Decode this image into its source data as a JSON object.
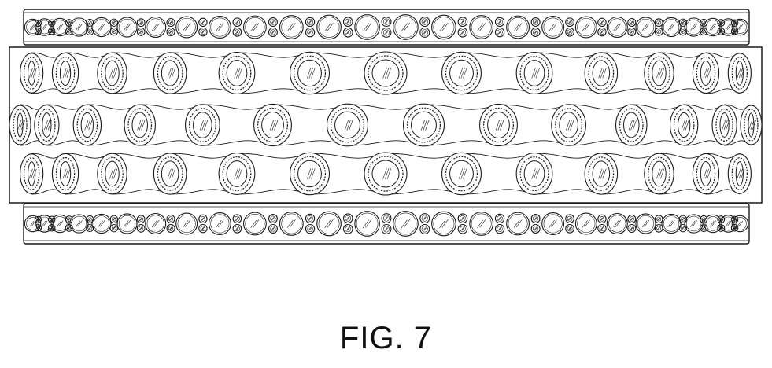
{
  "figure": {
    "label": "FIG. 7",
    "line_color": "#1a1a1a",
    "background": "#ffffff"
  },
  "ring": {
    "bands": [
      {
        "name": "top-channel-band",
        "stone_style": "small-and-large-alternating"
      },
      {
        "name": "center-band",
        "rows": 3,
        "stone_style": "bezel-set-stones-in-interlocking-loops"
      },
      {
        "name": "bottom-channel-band",
        "stone_style": "small-and-large-alternating"
      }
    ]
  }
}
